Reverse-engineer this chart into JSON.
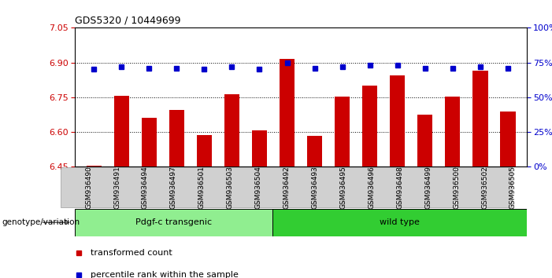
{
  "title": "GDS5320 / 10449699",
  "samples": [
    "GSM936490",
    "GSM936491",
    "GSM936494",
    "GSM936497",
    "GSM936501",
    "GSM936503",
    "GSM936504",
    "GSM936492",
    "GSM936493",
    "GSM936495",
    "GSM936496",
    "GSM936498",
    "GSM936499",
    "GSM936500",
    "GSM936502",
    "GSM936505"
  ],
  "transformed_count": [
    6.455,
    6.757,
    6.663,
    6.697,
    6.586,
    6.762,
    6.607,
    6.915,
    6.585,
    6.752,
    6.8,
    6.845,
    6.674,
    6.754,
    6.866,
    6.687
  ],
  "percentile_rank": [
    70,
    72,
    71,
    71,
    70,
    72,
    70,
    75,
    71,
    72,
    73,
    73,
    71,
    71,
    72,
    71
  ],
  "groups": [
    {
      "label": "Pdgf-c transgenic",
      "start": 0,
      "end": 7,
      "color": "#90ee90"
    },
    {
      "label": "wild type",
      "start": 7,
      "end": 16,
      "color": "#32cd32"
    }
  ],
  "ylim_left": [
    6.45,
    7.05
  ],
  "ylim_right": [
    0,
    100
  ],
  "yticks_left": [
    6.45,
    6.6,
    6.75,
    6.9,
    7.05
  ],
  "yticks_right": [
    0,
    25,
    50,
    75,
    100
  ],
  "bar_color": "#cc0000",
  "dot_color": "#0000cc",
  "background_color": "#ffffff",
  "xlabel": "genotype/variation",
  "legend_items": [
    "transformed count",
    "percentile rank within the sample"
  ],
  "gridlines_at": [
    6.6,
    6.75,
    6.9
  ]
}
